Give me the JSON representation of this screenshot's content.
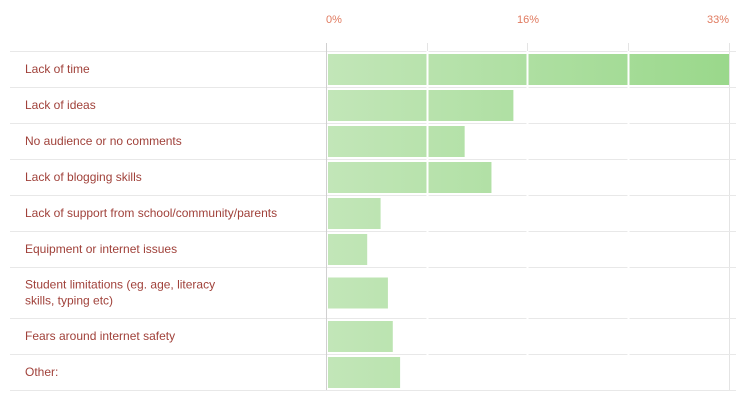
{
  "chart_data": {
    "type": "bar",
    "orientation": "horizontal",
    "title": "",
    "xlabel": "",
    "ylabel": "",
    "x_ticks": [
      "0%",
      "16%",
      "33%"
    ],
    "xlim": [
      0,
      33
    ],
    "grid": true,
    "legend": "none",
    "bar_color": "#c2e6b8",
    "bar_color_dark": "#9ad88b",
    "tick_color": "#e07a5f",
    "label_color": "#a0413a",
    "categories": [
      "Lack of time",
      "Lack of ideas",
      "No audience or no comments",
      "Lack of blogging skills",
      "Lack of support from school/community/parents",
      "Equipment or internet issues",
      "Student limitations (eg. age, literacy skills, typing etc)",
      "Fears around internet safety",
      "Other:"
    ],
    "values": [
      33,
      15.3,
      11.3,
      13.5,
      4.4,
      3.3,
      5.0,
      5.4,
      6.0
    ]
  }
}
